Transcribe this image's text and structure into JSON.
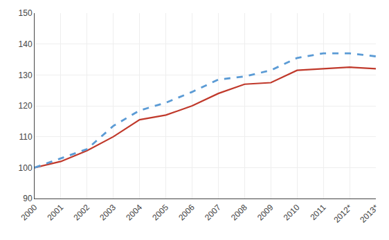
{
  "chart_data": {
    "type": "line",
    "categories": [
      "2000",
      "2001",
      "2002",
      "2003",
      "2004",
      "2005",
      "2006",
      "2007",
      "2008",
      "2009",
      "2010",
      "2011",
      "2012*",
      "2013*"
    ],
    "series": [
      {
        "color": "#c0392b",
        "line_style": "solid",
        "values": [
          100,
          102,
          105.5,
          110,
          115.5,
          117,
          120,
          124,
          127,
          127.5,
          131.5,
          132,
          132.5,
          132
        ]
      },
      {
        "color": "#5b9bd5",
        "line_style": "dashed",
        "values": [
          100,
          103,
          106,
          113.5,
          118.5,
          121,
          124.5,
          128.5,
          129.5,
          131.5,
          135.5,
          137,
          137,
          136
        ]
      }
    ],
    "ylim": [
      90,
      150
    ],
    "yticks": [
      90,
      100,
      110,
      120,
      130,
      140,
      150
    ],
    "grid": true
  }
}
